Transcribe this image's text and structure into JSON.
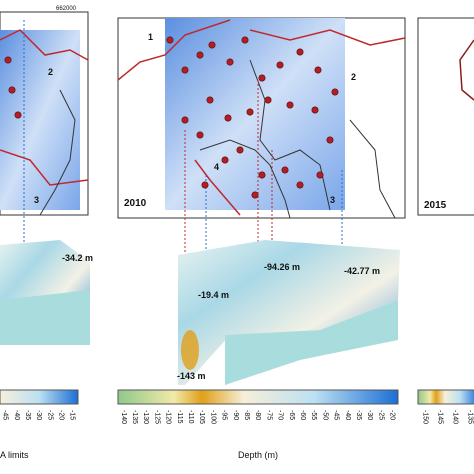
{
  "maps": {
    "left": {
      "coordinate": "662000",
      "zones": [
        "2",
        "3"
      ]
    },
    "middle": {
      "year": "2010",
      "zones": [
        "1",
        "2",
        "3",
        "4"
      ]
    },
    "right": {
      "year": "2015"
    }
  },
  "depth_labels": {
    "left": [
      "-34.2 m"
    ],
    "middle": [
      "-94.26 m",
      "-42.77 m",
      "-19.4 m",
      "-143 m"
    ]
  },
  "colorbars": {
    "left": {
      "ticks": [
        -45,
        -40,
        -35,
        -30,
        -25,
        -20,
        -15
      ],
      "caption": "A limits"
    },
    "middle": {
      "ticks": [
        -140,
        -135,
        -130,
        -125,
        -120,
        -115,
        -110,
        -105,
        -100,
        -95,
        -90,
        -85,
        -80,
        -75,
        -70,
        -65,
        -60,
        -55,
        -50,
        -45,
        -40,
        -35,
        -30,
        -25,
        -20
      ],
      "caption": "Depth (m)"
    },
    "right": {
      "ticks": [
        -150,
        -145,
        -140,
        -135
      ]
    }
  }
}
